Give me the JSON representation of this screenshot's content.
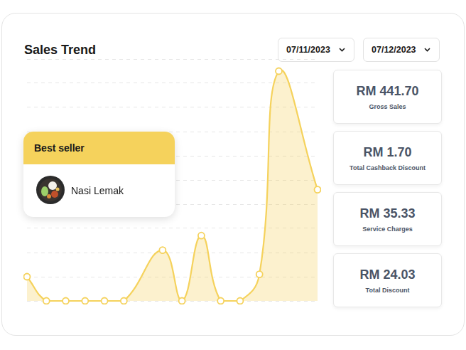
{
  "header": {
    "title": "Sales Trend",
    "date_from": "07/11/2023",
    "date_to": "07/12/2023"
  },
  "best_seller": {
    "label": "Best seller",
    "item": "Nasi Lemak"
  },
  "stats": [
    {
      "value": "RM 441.70",
      "label": "Gross Sales"
    },
    {
      "value": "RM 1.70",
      "label": "Total Cashback Discount"
    },
    {
      "value": "RM 35.33",
      "label": "Service Charges"
    },
    {
      "value": "RM 24.03",
      "label": "Total Discount"
    }
  ],
  "chart_data": {
    "type": "line",
    "x": [
      0,
      2,
      4,
      6,
      8,
      10,
      14,
      16,
      18,
      20,
      22,
      24,
      26,
      30
    ],
    "values": [
      1,
      0,
      0,
      0,
      0,
      0,
      2.1,
      0,
      2.7,
      0,
      0,
      1.1,
      9.5,
      4.6
    ],
    "color": "#f5d25c",
    "xlim": [
      0,
      30
    ],
    "ylim": [
      0,
      10
    ],
    "yticks": [
      0,
      1,
      2,
      3,
      4,
      5,
      6,
      7,
      8,
      9,
      10
    ],
    "grid": true,
    "tick_labels": false,
    "marker": "circle",
    "line_style": "solid"
  }
}
